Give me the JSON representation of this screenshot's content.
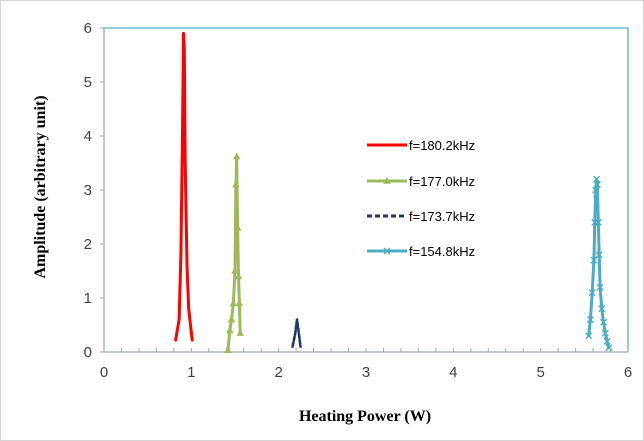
{
  "chart_data": {
    "type": "line",
    "xlabel": "Heating Power (W)",
    "ylabel": "Amplitude (arbitrary  unit)",
    "xlim": [
      0,
      6
    ],
    "ylim": [
      0,
      6
    ],
    "x_ticks": [
      "0",
      "1",
      "2",
      "3",
      "4",
      "5",
      "6"
    ],
    "y_ticks": [
      "0",
      "1",
      "2",
      "3",
      "4",
      "5",
      "6"
    ],
    "grid": false,
    "legend_position": "center-right",
    "series": [
      {
        "name": "f=180.2kHz",
        "color": "#ff0000",
        "style": "solid",
        "marker": "none",
        "x": [
          0.82,
          0.86,
          0.88,
          0.9,
          0.91,
          0.92,
          0.93,
          0.95,
          0.97,
          0.99,
          1.01
        ],
        "y": [
          0.22,
          0.6,
          1.8,
          4.2,
          5.9,
          5.6,
          3.5,
          1.6,
          0.8,
          0.5,
          0.22
        ]
      },
      {
        "name": "f=177.0kHz",
        "color": "#9bbb59",
        "style": "solid",
        "marker": "triangle",
        "x": [
          1.42,
          1.44,
          1.46,
          1.48,
          1.5,
          1.51,
          1.52,
          1.53,
          1.54,
          1.55,
          1.56
        ],
        "y": [
          0.03,
          0.4,
          0.6,
          0.9,
          1.5,
          3.1,
          3.62,
          2.3,
          1.4,
          0.9,
          0.35
        ]
      },
      {
        "name": "f=173.7kHz",
        "color": "#1f3864",
        "style": "dashed",
        "marker": "none",
        "x": [
          2.16,
          2.19,
          2.21,
          2.23,
          2.25
        ],
        "y": [
          0.1,
          0.35,
          0.6,
          0.35,
          0.1
        ]
      },
      {
        "name": "f=154.8kHz",
        "color": "#4bacc6",
        "style": "solid",
        "marker": "x",
        "x": [
          5.55,
          5.57,
          5.59,
          5.61,
          5.62,
          5.63,
          5.64,
          5.65,
          5.66,
          5.67,
          5.68,
          5.7,
          5.72,
          5.74,
          5.76,
          5.78
        ],
        "y": [
          0.3,
          0.6,
          1.1,
          1.7,
          2.4,
          3.0,
          3.2,
          3.1,
          2.4,
          1.8,
          1.2,
          0.8,
          0.55,
          0.35,
          0.2,
          0.08
        ]
      }
    ]
  }
}
